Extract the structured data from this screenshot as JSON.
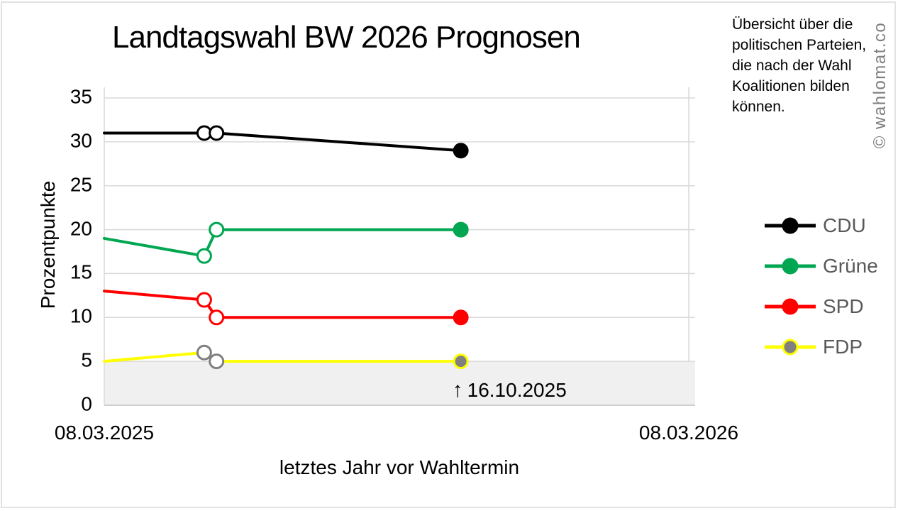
{
  "header": {
    "title": "Landtagswahl BW 2026 Prognosen"
  },
  "note": {
    "text": "Übersicht über die\npolitischen Parteien,\ndie nach der Wahl\nKoalitionen bilden\nkönnen."
  },
  "watermark": {
    "text": "© wahlomat.co",
    "color": "#7f7f7f"
  },
  "chart_data": {
    "type": "line",
    "title": "Landtagswahl BW 2026 Prognosen",
    "xlabel": "letztes Jahr vor Wahltermin",
    "ylabel": "Prozentpunkte",
    "ylim": [
      0,
      35
    ],
    "y_ticks": [
      0,
      5,
      10,
      15,
      20,
      25,
      30,
      35
    ],
    "x_ticks": [
      {
        "label": "08.03.2025",
        "x_frac": 0
      },
      {
        "label": "08.03.2026",
        "x_frac": 1
      }
    ],
    "grid": "horizontal-plus-right-vertical",
    "gridline_color": "#d9d9d9",
    "zero_line_color": "#bfbfbf",
    "highlight_band": {
      "from": 0,
      "to": 5,
      "color": "#f0f0f0"
    },
    "annotation": {
      "arrow": "↑",
      "label": "16.10.2025",
      "x_frac": 0.61
    },
    "legend": {
      "position": "right",
      "text_color": "#595959"
    },
    "series": [
      {
        "name": "CDU",
        "color": "#000000",
        "marker_open_stroke": "#000000",
        "marker_solid_fill": "#000000",
        "marker_solid_stroke": "#000000",
        "points": [
          {
            "x_frac": 0,
            "y": 31,
            "marker": "none"
          },
          {
            "x_frac": 0.171,
            "y": 31,
            "marker": "open"
          },
          {
            "x_frac": 0.192,
            "y": 31,
            "marker": "open"
          },
          {
            "x_frac": 0.61,
            "y": 29,
            "marker": "solid"
          }
        ]
      },
      {
        "name": "Grüne",
        "color": "#00a651",
        "marker_open_stroke": "#00a651",
        "marker_solid_fill": "#00a651",
        "marker_solid_stroke": "#00a651",
        "points": [
          {
            "x_frac": 0,
            "y": 19,
            "marker": "none"
          },
          {
            "x_frac": 0.171,
            "y": 17,
            "marker": "open"
          },
          {
            "x_frac": 0.192,
            "y": 20,
            "marker": "open"
          },
          {
            "x_frac": 0.61,
            "y": 20,
            "marker": "solid"
          }
        ]
      },
      {
        "name": "SPD",
        "color": "#ff0000",
        "marker_open_stroke": "#ff0000",
        "marker_solid_fill": "#ff0000",
        "marker_solid_stroke": "#ff0000",
        "points": [
          {
            "x_frac": 0,
            "y": 13,
            "marker": "none"
          },
          {
            "x_frac": 0.171,
            "y": 12,
            "marker": "open"
          },
          {
            "x_frac": 0.192,
            "y": 10,
            "marker": "open"
          },
          {
            "x_frac": 0.61,
            "y": 10,
            "marker": "solid"
          }
        ]
      },
      {
        "name": "FDP",
        "color": "#ffff00",
        "marker_open_stroke": "#808080",
        "marker_solid_fill": "#808080",
        "marker_solid_stroke": "#ffff00",
        "points": [
          {
            "x_frac": 0,
            "y": 5,
            "marker": "none"
          },
          {
            "x_frac": 0.171,
            "y": 6,
            "marker": "open"
          },
          {
            "x_frac": 0.192,
            "y": 5,
            "marker": "open"
          },
          {
            "x_frac": 0.61,
            "y": 5,
            "marker": "solid"
          }
        ]
      }
    ]
  }
}
